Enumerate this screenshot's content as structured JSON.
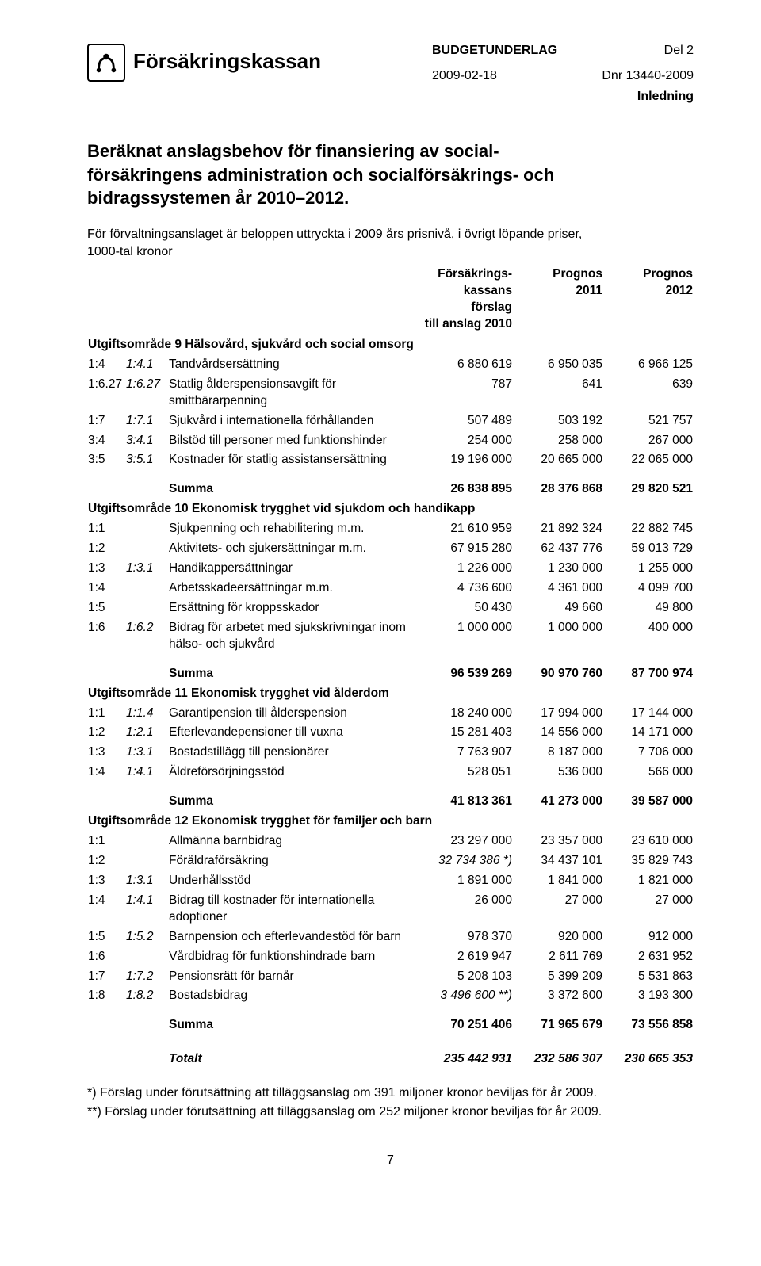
{
  "header": {
    "brand": "Försäkringskassan",
    "doc_type": "BUDGETUNDERLAG",
    "part": "Del 2",
    "date": "2009-02-18",
    "ref": "Dnr 13440-2009",
    "section": "Inledning"
  },
  "title": "Beräknat anslagsbehov för finansiering av social-\nförsäkringens administration och socialförsäkrings- och\nbidragssystemen år 2010–2012.",
  "lead": "För förvaltningsanslaget är beloppen uttryckta i 2009 års prisnivå, i övrigt löpande priser,\n1000-tal kronor",
  "thead": {
    "c1": "Försäkrings-\nkassans förslag\ntill anslag 2010",
    "c2": "Prognos\n2011",
    "c3": "Prognos\n2012"
  },
  "sections": [
    {
      "title": "Utgiftsområde 9 Hälsovård, sjukvård och social omsorg",
      "rows": [
        {
          "c1": "1:4",
          "c2": "1:4.1",
          "desc": "Tandvårdsersättning",
          "v": [
            "6 880 619",
            "6 950 035",
            "6 966 125"
          ]
        },
        {
          "c1": "1:6.27",
          "c2": "1:6.27",
          "c2_italic": true,
          "desc": "Statlig ålderspensionsavgift för\nsmittbärarpenning",
          "v": [
            "787",
            "641",
            "639"
          ]
        },
        {
          "c1": "1:7",
          "c2": "1:7.1",
          "desc": "Sjukvård i internationella förhållanden",
          "v": [
            "507 489",
            "503 192",
            "521 757"
          ]
        },
        {
          "c1": "3:4",
          "c2": "3:4.1",
          "desc": "Bilstöd till personer med funktionshinder",
          "v": [
            "254 000",
            "258 000",
            "267 000"
          ]
        },
        {
          "c1": "3:5",
          "c2": "3:5.1",
          "desc": "Kostnader för statlig assistansersättning",
          "v": [
            "19 196 000",
            "20 665 000",
            "22 065 000"
          ]
        }
      ],
      "sum": {
        "label": "Summa",
        "v": [
          "26 838 895",
          "28 376 868",
          "29 820 521"
        ]
      }
    },
    {
      "title": "Utgiftsområde 10 Ekonomisk trygghet vid sjukdom och handikapp",
      "rows": [
        {
          "c1": "1:1",
          "c2": "",
          "desc": "Sjukpenning och rehabilitering m.m.",
          "v": [
            "21 610 959",
            "21 892 324",
            "22 882 745"
          ]
        },
        {
          "c1": "1:2",
          "c2": "",
          "desc": "Aktivitets- och sjukersättningar m.m.",
          "v": [
            "67 915 280",
            "62 437 776",
            "59 013 729"
          ]
        },
        {
          "c1": "1:3",
          "c2": "1:3.1",
          "desc": "Handikappersättningar",
          "v": [
            "1 226 000",
            "1 230 000",
            "1 255 000"
          ]
        },
        {
          "c1": "1:4",
          "c2": "",
          "desc": "Arbetsskadeersättningar m.m.",
          "v": [
            "4 736 600",
            "4 361 000",
            "4 099 700"
          ]
        },
        {
          "c1": "1:5",
          "c2": "",
          "desc": "Ersättning för kroppsskador",
          "v": [
            "50 430",
            "49 660",
            "49 800"
          ]
        },
        {
          "c1": "1:6",
          "c2": "1:6.2",
          "desc": "Bidrag för arbetet med sjukskrivningar inom\nhälso- och sjukvård",
          "v": [
            "1 000 000",
            "1 000 000",
            "400 000"
          ]
        }
      ],
      "sum": {
        "label": "Summa",
        "v": [
          "96 539 269",
          "90 970 760",
          "87 700 974"
        ]
      }
    },
    {
      "title": "Utgiftsområde 11 Ekonomisk trygghet vid ålderdom",
      "rows": [
        {
          "c1": "1:1",
          "c2": "1:1.4",
          "desc": "Garantipension till ålderspension",
          "v": [
            "18 240 000",
            "17 994 000",
            "17 144 000"
          ]
        },
        {
          "c1": "1:2",
          "c2": "1:2.1",
          "desc": "Efterlevandepensioner till vuxna",
          "v": [
            "15 281 403",
            "14 556 000",
            "14 171 000"
          ]
        },
        {
          "c1": "1:3",
          "c2": "1:3.1",
          "desc": "Bostadstillägg till pensionärer",
          "v": [
            "7 763 907",
            "8 187 000",
            "7 706 000"
          ]
        },
        {
          "c1": "1:4",
          "c2": "1:4.1",
          "desc": "Äldreförsörjningsstöd",
          "v": [
            "528 051",
            "536 000",
            "566 000"
          ]
        }
      ],
      "sum": {
        "label": "Summa",
        "v": [
          "41 813 361",
          "41 273 000",
          "39 587 000"
        ]
      }
    },
    {
      "title": "Utgiftsområde 12 Ekonomisk trygghet för familjer och barn",
      "rows": [
        {
          "c1": "1:1",
          "c2": "",
          "desc": "Allmänna barnbidrag",
          "v": [
            "23 297 000",
            "23 357 000",
            "23 610 000"
          ]
        },
        {
          "c1": "1:2",
          "c2": "",
          "desc": "Föräldraförsäkring",
          "v": [
            "32 734 386 *)",
            "34 437 101",
            "35 829 743"
          ],
          "v0_italic": true
        },
        {
          "c1": "1:3",
          "c2": "1:3.1",
          "desc": "Underhållsstöd",
          "v": [
            "1 891 000",
            "1 841 000",
            "1 821 000"
          ]
        },
        {
          "c1": "1:4",
          "c2": "1:4.1",
          "desc": "Bidrag till kostnader för internationella\nadoptioner",
          "v": [
            "26 000",
            "27 000",
            "27 000"
          ]
        },
        {
          "c1": "1:5",
          "c2": "1:5.2",
          "desc": "Barnpension och efterlevandestöd för barn",
          "v": [
            "978 370",
            "920 000",
            "912 000"
          ]
        },
        {
          "c1": "1:6",
          "c2": "",
          "desc": "Vårdbidrag för funktionshindrade barn",
          "v": [
            "2 619 947",
            "2 611 769",
            "2 631 952"
          ]
        },
        {
          "c1": "1:7",
          "c2": "1:7.2",
          "desc": "Pensionsrätt för barnår",
          "v": [
            "5 208 103",
            "5 399 209",
            "5 531 863"
          ]
        },
        {
          "c1": "1:8",
          "c2": "1:8.2",
          "desc": "Bostadsbidrag",
          "v": [
            "3 496 600 **)",
            "3 372 600",
            "3 193 300"
          ],
          "v0_italic": true
        }
      ],
      "sum": {
        "label": "Summa",
        "v": [
          "70 251 406",
          "71 965 679",
          "73 556 858"
        ]
      }
    }
  ],
  "total": {
    "label": "Totalt",
    "v": [
      "235 442 931",
      "232 586 307",
      "230 665 353"
    ]
  },
  "footnotes": [
    "*)   Förslag under förutsättning att tilläggsanslag om 391 miljoner kronor beviljas för år 2009.",
    "**) Förslag under förutsättning att tilläggsanslag om 252 miljoner kronor beviljas för år 2009."
  ],
  "page_number": "7"
}
